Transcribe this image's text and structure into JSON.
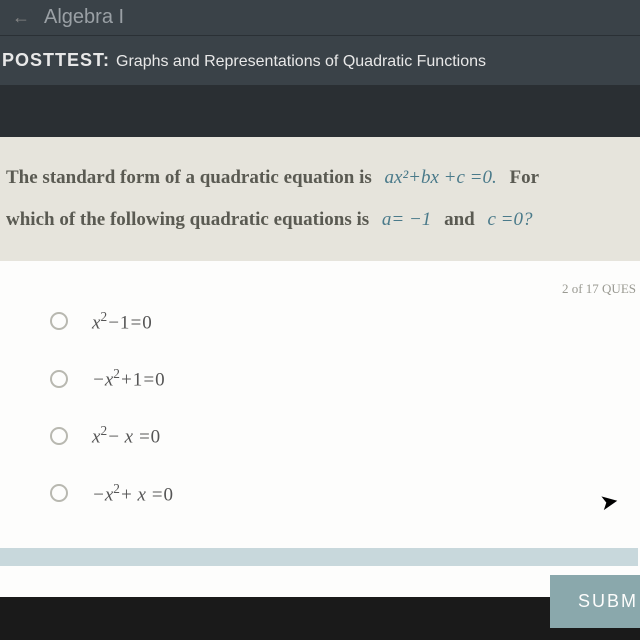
{
  "header": {
    "course": "Algebra I",
    "posttest_label": "POSTTEST:",
    "posttest_title": "Graphs and Representations of Quadratic Functions"
  },
  "question": {
    "line1_pre": "The standard form of a quadratic equation is",
    "formula1": "ax²+bx +c =0.",
    "line1_post": "For",
    "line2_pre": "which of the following quadratic equations is",
    "formula2": "a= −1",
    "mid": "and",
    "formula3": "c =0?"
  },
  "progress": "2 of 17 QUES",
  "options": [
    {
      "html": "x<sup>2</sup>−<span class='n'>1</span>=<span class='n'>0</span>"
    },
    {
      "html": "−x<sup>2</sup>+<span class='n'>1</span>=<span class='n'>0</span>"
    },
    {
      "html": "x<sup>2</sup>− x =<span class='n'>0</span>"
    },
    {
      "html": "−x<sup>2</sup>+ x =<span class='n'>0</span>"
    }
  ],
  "submit_label": "SUBM"
}
